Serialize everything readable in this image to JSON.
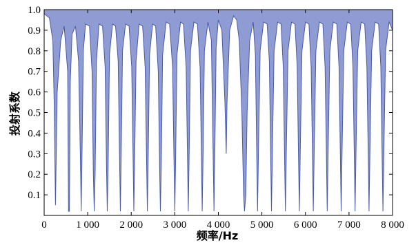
{
  "chart_data": {
    "type": "line",
    "title": "",
    "xlabel": "频率/Hz",
    "ylabel": "投射系数",
    "xlim": [
      0,
      8000
    ],
    "ylim": [
      0,
      1.0
    ],
    "x_ticks": [
      0,
      1000,
      2000,
      3000,
      4000,
      5000,
      6000,
      7000,
      8000
    ],
    "x_tick_labels": [
      "0",
      "1 000",
      "2 000",
      "3 000",
      "4 000",
      "5 000",
      "6 000",
      "7 000",
      "8 000"
    ],
    "y_ticks": [
      0.1,
      0.2,
      0.3,
      0.4,
      0.5,
      0.6,
      0.7,
      0.8,
      0.9,
      1.0
    ],
    "y_tick_labels": [
      "0.1",
      "0.2",
      "0.3",
      "0.4",
      "0.5",
      "0.6",
      "0.7",
      "0.8",
      "0.9",
      "1.0"
    ],
    "grid": false,
    "legend": "none",
    "line_color": "#4a5aa8",
    "fill_color": "#8f9bd3",
    "series": [
      {
        "x": [
          0,
          120,
          200,
          230,
          260,
          300,
          380,
          460,
          540,
          560,
          580,
          600,
          640,
          720,
          790,
          830,
          850,
          870,
          900,
          950,
          1040,
          1100,
          1130,
          1150,
          1170,
          1200,
          1260,
          1340,
          1400,
          1430,
          1450,
          1470,
          1500,
          1570,
          1640,
          1700,
          1730,
          1750,
          1770,
          1800,
          1870,
          1950,
          2010,
          2040,
          2060,
          2080,
          2110,
          2180,
          2260,
          2320,
          2350,
          2370,
          2390,
          2420,
          2490,
          2560,
          2620,
          2650,
          2670,
          2690,
          2720,
          2800,
          2880,
          2950,
          2980,
          3000,
          3020,
          3050,
          3130,
          3200,
          3260,
          3290,
          3310,
          3330,
          3360,
          3440,
          3520,
          3580,
          3610,
          3630,
          3650,
          3680,
          3760,
          3840,
          3880,
          3900,
          3920,
          3950,
          4000,
          4080,
          4150,
          4180,
          4200,
          4260,
          4350,
          4420,
          4480,
          4540,
          4580,
          4600,
          4630,
          4660,
          4720,
          4800,
          4850,
          4880,
          4900,
          4920,
          4960,
          5040,
          5120,
          5170,
          5200,
          5220,
          5240,
          5280,
          5360,
          5440,
          5490,
          5520,
          5540,
          5560,
          5600,
          5680,
          5760,
          5810,
          5840,
          5860,
          5880,
          5920,
          6000,
          6080,
          6130,
          6160,
          6180,
          6200,
          6240,
          6320,
          6400,
          6450,
          6480,
          6500,
          6520,
          6560,
          6640,
          6720,
          6770,
          6800,
          6820,
          6840,
          6880,
          6960,
          7040,
          7090,
          7120,
          7140,
          7160,
          7200,
          7280,
          7360,
          7410,
          7440,
          7460,
          7480,
          7520,
          7600,
          7680,
          7730,
          7760,
          7780,
          7800,
          7840,
          7920,
          8000
        ],
        "y": [
          0.98,
          0.96,
          0.85,
          0.55,
          0.05,
          0.6,
          0.85,
          0.92,
          0.7,
          0.02,
          0.02,
          0.65,
          0.88,
          0.92,
          0.75,
          0.3,
          0.02,
          0.3,
          0.8,
          0.93,
          0.92,
          0.7,
          0.2,
          0.02,
          0.2,
          0.75,
          0.93,
          0.92,
          0.72,
          0.25,
          0.02,
          0.25,
          0.78,
          0.93,
          0.92,
          0.75,
          0.3,
          0.02,
          0.3,
          0.8,
          0.93,
          0.92,
          0.72,
          0.3,
          0.02,
          0.3,
          0.75,
          0.93,
          0.92,
          0.72,
          0.3,
          0.02,
          0.3,
          0.78,
          0.93,
          0.92,
          0.7,
          0.25,
          0.02,
          0.25,
          0.78,
          0.94,
          0.93,
          0.72,
          0.28,
          0.02,
          0.28,
          0.78,
          0.94,
          0.93,
          0.72,
          0.3,
          0.02,
          0.3,
          0.8,
          0.94,
          0.93,
          0.72,
          0.3,
          0.02,
          0.3,
          0.8,
          0.94,
          0.85,
          0.3,
          0.02,
          0.3,
          0.82,
          0.95,
          0.9,
          0.55,
          0.3,
          0.55,
          0.9,
          0.97,
          0.95,
          0.85,
          0.5,
          0.1,
          0.02,
          0.1,
          0.5,
          0.85,
          0.94,
          0.78,
          0.3,
          0.02,
          0.3,
          0.8,
          0.94,
          0.93,
          0.75,
          0.3,
          0.02,
          0.3,
          0.8,
          0.94,
          0.93,
          0.72,
          0.3,
          0.02,
          0.3,
          0.8,
          0.94,
          0.93,
          0.72,
          0.3,
          0.02,
          0.3,
          0.8,
          0.94,
          0.93,
          0.72,
          0.3,
          0.02,
          0.3,
          0.8,
          0.94,
          0.93,
          0.72,
          0.3,
          0.02,
          0.3,
          0.8,
          0.94,
          0.93,
          0.72,
          0.3,
          0.02,
          0.3,
          0.8,
          0.94,
          0.93,
          0.72,
          0.3,
          0.02,
          0.3,
          0.8,
          0.94,
          0.93,
          0.72,
          0.3,
          0.02,
          0.3,
          0.8,
          0.94,
          0.93,
          0.72,
          0.3,
          0.02,
          0.3,
          0.8,
          0.94,
          0.9
        ]
      }
    ]
  }
}
